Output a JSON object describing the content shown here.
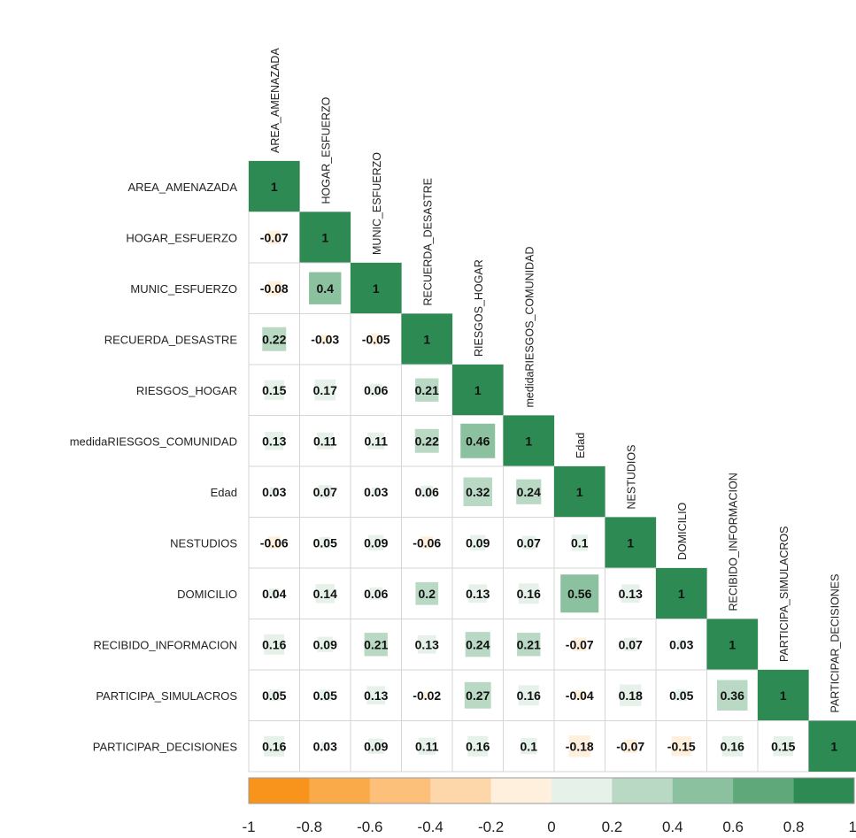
{
  "chart_data": {
    "type": "heatmap",
    "subtype": "correlation-lower-triangle",
    "variables": [
      "AREA_AMENAZADA",
      "HOGAR_ESFUERZO",
      "MUNIC_ESFUERZO",
      "RECUERDA_DESASTRE",
      "RIESGOS_HOGAR",
      "medidaRIESGOS_COMUNIDAD",
      "Edad",
      "NESTUDIOS",
      "DOMICILIO",
      "RECIBIDO_INFORMACION",
      "PARTICIPA_SIMULACROS",
      "PARTICIPAR_DECISIONES"
    ],
    "matrix": [
      [
        1
      ],
      [
        -0.07,
        1
      ],
      [
        -0.08,
        0.4,
        1
      ],
      [
        0.22,
        -0.03,
        -0.05,
        1
      ],
      [
        0.15,
        0.17,
        0.06,
        0.21,
        1
      ],
      [
        0.13,
        0.11,
        0.11,
        0.22,
        0.46,
        1
      ],
      [
        0.03,
        0.07,
        0.03,
        0.06,
        0.32,
        0.24,
        1
      ],
      [
        -0.06,
        0.05,
        0.09,
        -0.06,
        0.09,
        0.07,
        0.1,
        1
      ],
      [
        0.04,
        0.14,
        0.06,
        0.2,
        0.13,
        0.16,
        0.56,
        0.13,
        1
      ],
      [
        0.16,
        0.09,
        0.21,
        0.13,
        0.24,
        0.21,
        -0.07,
        0.07,
        0.03,
        1
      ],
      [
        0.05,
        0.05,
        0.13,
        -0.02,
        0.27,
        0.16,
        -0.04,
        0.18,
        0.05,
        0.36,
        1
      ],
      [
        0.16,
        0.03,
        0.09,
        0.11,
        0.16,
        0.1,
        -0.18,
        -0.07,
        -0.15,
        0.16,
        0.15,
        1
      ]
    ],
    "color_scale": {
      "range": [
        -1,
        1
      ],
      "ticks": [
        "-1",
        "-0.8",
        "-0.6",
        "-0.4",
        "-0.2",
        "0",
        "0.2",
        "0.4",
        "0.6",
        "0.8",
        "1"
      ],
      "bins": [
        "#f8941c",
        "#fbaa4a",
        "#fcc07a",
        "#fdd6a9",
        "#fff0de",
        "#e6f1ea",
        "#b9d9c4",
        "#8cc1a0",
        "#5ea87a",
        "#2c8a52"
      ],
      "diagonal_color": "#2c8a52"
    }
  }
}
